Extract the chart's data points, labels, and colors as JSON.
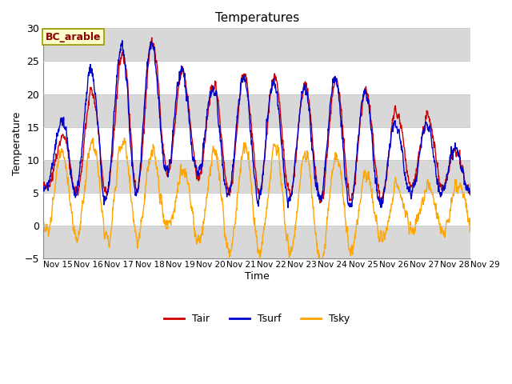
{
  "title": "Temperatures",
  "xlabel": "Time",
  "ylabel": "Temperature",
  "ylim": [
    -5,
    30
  ],
  "annotation_text": "BC_arable",
  "annotation_bg": "#ffffcc",
  "annotation_border": "#999900",
  "annotation_text_color": "#8b0000",
  "grid_color": "#cccccc",
  "bg_color": "#ffffff",
  "line_colors": {
    "Tair": "#cc0000",
    "Tsurf": "#0000cc",
    "Tsky": "#ffa500"
  },
  "line_widths": {
    "Tair": 1.0,
    "Tsurf": 1.0,
    "Tsky": 1.0
  },
  "x_tick_labels": [
    "Nov 15",
    "Nov 16",
    "Nov 17",
    "Nov 18",
    "Nov 19",
    "Nov 20",
    "Nov 21",
    "Nov 22",
    "Nov 23",
    "Nov 24",
    "Nov 25",
    "Nov 26",
    "Nov 27",
    "Nov 28",
    "Nov 29"
  ],
  "num_days": 14,
  "points_per_day": 96,
  "seed": 1234
}
